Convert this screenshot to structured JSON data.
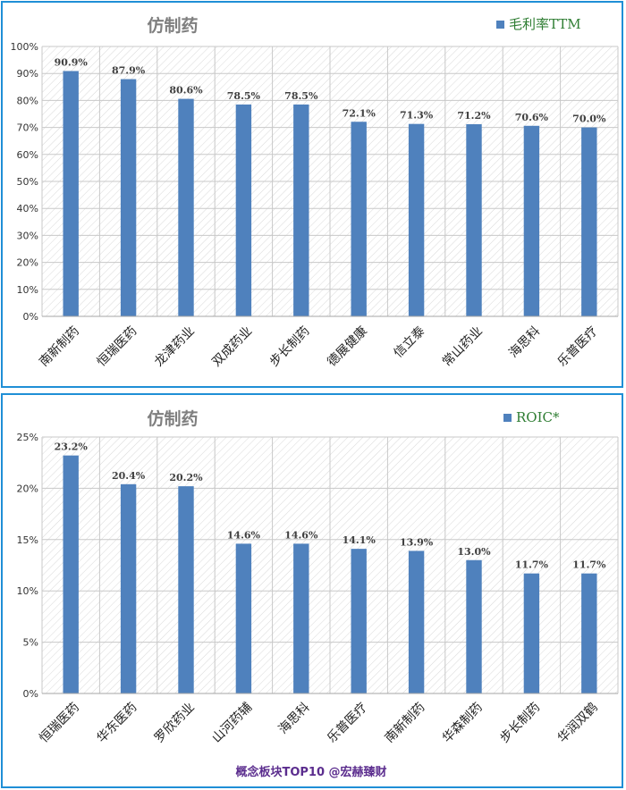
{
  "charts": [
    {
      "id": "gross-margin",
      "legend_label": "毛利率TTM",
      "color": "#4f81bd",
      "chart_data": {
        "type": "bar",
        "title": "仿制药",
        "categories": [
          "南新制药",
          "恒瑞医药",
          "龙津药业",
          "双成药业",
          "步长制药",
          "德展健康",
          "信立泰",
          "常山药业",
          "海思科",
          "乐普医疗"
        ],
        "series": [
          {
            "name": "毛利率TTM",
            "values": [
              90.9,
              87.9,
              80.6,
              78.5,
              78.5,
              72.1,
              71.3,
              71.2,
              70.6,
              70.0
            ]
          }
        ],
        "value_labels": [
          "90.9%",
          "87.9%",
          "80.6%",
          "78.5%",
          "78.5%",
          "72.1%",
          "71.3%",
          "71.2%",
          "70.6%",
          "70.0%"
        ],
        "ylim": [
          0,
          100
        ],
        "yticks": [
          0,
          10,
          20,
          30,
          40,
          50,
          60,
          70,
          80,
          90,
          100
        ],
        "ytick_labels": [
          "0%",
          "10%",
          "20%",
          "30%",
          "40%",
          "50%",
          "60%",
          "70%",
          "80%",
          "90%",
          "100%"
        ],
        "legend_position": "top-right",
        "grid": true
      }
    },
    {
      "id": "roic",
      "legend_label": "ROIC*",
      "color": "#4f81bd",
      "chart_data": {
        "type": "bar",
        "title": "仿制药",
        "categories": [
          "恒瑞医药",
          "华东医药",
          "罗欣药业",
          "山河药辅",
          "海思科",
          "乐普医疗",
          "南新制药",
          "华森制药",
          "步长制药",
          "华润双鹤"
        ],
        "series": [
          {
            "name": "ROIC*",
            "values": [
              23.2,
              20.4,
              20.2,
              14.6,
              14.6,
              14.1,
              13.9,
              13.0,
              11.7,
              11.7
            ]
          }
        ],
        "value_labels": [
          "23.2%",
          "20.4%",
          "20.2%",
          "14.6%",
          "14.6%",
          "14.1%",
          "13.9%",
          "13.0%",
          "11.7%",
          "11.7%"
        ],
        "ylim": [
          0,
          25
        ],
        "yticks": [
          0,
          5,
          10,
          15,
          20,
          25
        ],
        "ytick_labels": [
          "0%",
          "5%",
          "10%",
          "15%",
          "20%",
          "25%"
        ],
        "legend_position": "top-right",
        "grid": true
      }
    }
  ],
  "footer": "概念板块TOP10 @宏赫臻财"
}
